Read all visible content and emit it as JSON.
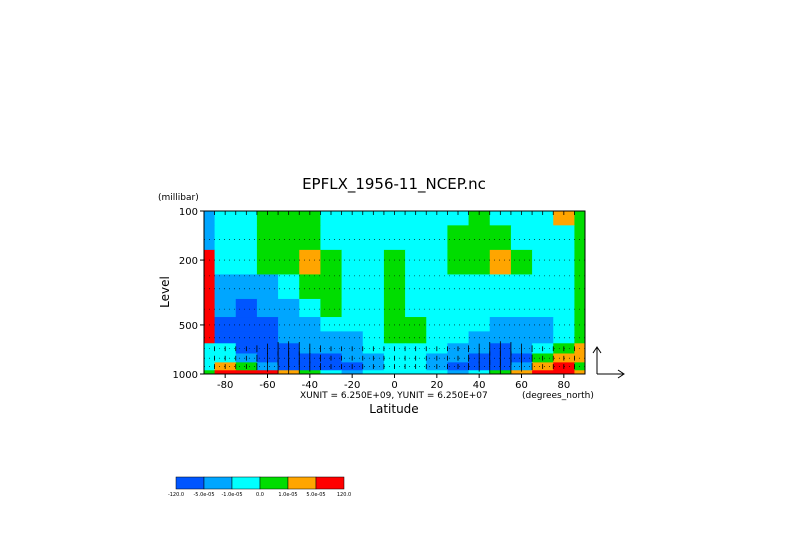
{
  "chart_data": {
    "type": "heatmap",
    "title": "EPFLX_1956-11_NCEP.nc",
    "xlabel": "Latitude",
    "ylabel": "Level",
    "y_units": "(millibar)",
    "x_units": "(degrees_north)",
    "unit_note": "XUNIT = 6.250E+09, YUNIT = 6.250E+07",
    "xlim": [
      -90,
      90
    ],
    "ylim": [
      1000,
      100
    ],
    "y_scale": "log",
    "x_ticks": [
      "-80",
      "-60",
      "-40",
      "-20",
      "0",
      "20",
      "40",
      "60",
      "80"
    ],
    "x_tick_values": [
      -80,
      -60,
      -40,
      -20,
      0,
      20,
      40,
      60,
      80
    ],
    "y_ticks": [
      "100",
      "200",
      "500",
      "1000"
    ],
    "y_tick_values": [
      100,
      200,
      500,
      1000
    ],
    "grid": "dotted horizontal lines at pressure levels",
    "colorbar": {
      "labels": [
        "-120.0",
        "-5.0e-05",
        "-1.0e-05",
        "0.0",
        "1.0e-05",
        "5.0e-05",
        "120.0"
      ],
      "colors": [
        "#0055ff",
        "#00a6ff",
        "#00ffff",
        "#00dd00",
        "#ffa500",
        "#ff0000"
      ]
    },
    "colormap": [
      "#0055ff",
      "#00a6ff",
      "#00ffff",
      "#00dd00",
      "#ffa500",
      "#ff0000"
    ],
    "lats": [
      -90,
      -80,
      -70,
      -60,
      -50,
      -40,
      -30,
      -20,
      -10,
      0,
      10,
      20,
      30,
      40,
      50,
      60,
      70,
      80,
      90
    ],
    "levels": [
      100,
      150,
      200,
      300,
      400,
      500,
      600,
      700,
      800,
      900,
      1000
    ],
    "field_class": [
      [
        1,
        2,
        2,
        3,
        3,
        3,
        2,
        2,
        2,
        2,
        2,
        2,
        2,
        3,
        2,
        2,
        2,
        4,
        3
      ],
      [
        1,
        2,
        2,
        3,
        3,
        3,
        2,
        2,
        2,
        2,
        2,
        2,
        3,
        3,
        3,
        2,
        2,
        2,
        3
      ],
      [
        5,
        2,
        2,
        3,
        3,
        4,
        3,
        2,
        2,
        3,
        2,
        2,
        3,
        3,
        4,
        3,
        2,
        2,
        3
      ],
      [
        5,
        1,
        1,
        1,
        2,
        3,
        3,
        2,
        2,
        3,
        2,
        2,
        2,
        2,
        2,
        2,
        2,
        2,
        3
      ],
      [
        5,
        1,
        0,
        1,
        1,
        2,
        3,
        2,
        2,
        3,
        2,
        2,
        2,
        2,
        2,
        2,
        2,
        2,
        3
      ],
      [
        5,
        0,
        0,
        0,
        1,
        1,
        2,
        2,
        2,
        3,
        3,
        2,
        2,
        2,
        1,
        1,
        1,
        2,
        3
      ],
      [
        5,
        0,
        0,
        0,
        1,
        1,
        1,
        1,
        2,
        3,
        3,
        2,
        2,
        1,
        1,
        1,
        1,
        2,
        3
      ],
      [
        2,
        2,
        0,
        0,
        0,
        1,
        1,
        1,
        2,
        2,
        2,
        2,
        1,
        1,
        0,
        1,
        2,
        3,
        4
      ],
      [
        2,
        2,
        1,
        0,
        0,
        0,
        0,
        1,
        1,
        2,
        2,
        1,
        1,
        0,
        0,
        0,
        3,
        4,
        4
      ],
      [
        2,
        4,
        3,
        1,
        0,
        0,
        0,
        0,
        1,
        2,
        2,
        1,
        0,
        0,
        0,
        1,
        4,
        5,
        3
      ],
      [
        3,
        5,
        5,
        5,
        4,
        3,
        2,
        1,
        2,
        2,
        2,
        2,
        1,
        2,
        3,
        4,
        5,
        5,
        4
      ]
    ],
    "flux_vectors_note": "vertical EP flux arrows, strongest near 40-60N and 40-60S lower troposphere",
    "reference_arrow": "x/y reference vectors at right"
  }
}
